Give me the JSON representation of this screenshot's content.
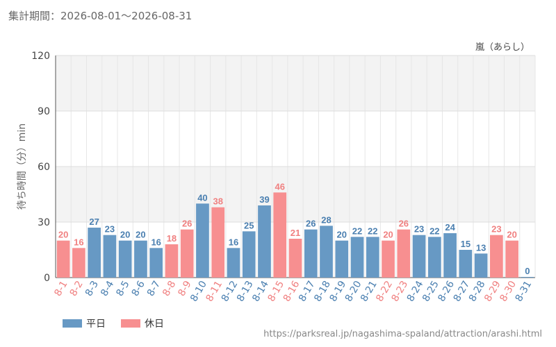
{
  "header": {
    "period": "集計期間：2026-08-01～2026-08-31"
  },
  "chart_data": {
    "type": "bar",
    "title": "",
    "attraction_label": "嵐（あらし）",
    "ylabel": "待ち時間（分）min",
    "xlabel": "",
    "ylim": [
      0,
      120
    ],
    "yticks": [
      0,
      30,
      60,
      90,
      120
    ],
    "grid": true,
    "categories": [
      "8-1",
      "8-2",
      "8-3",
      "8-4",
      "8-5",
      "8-6",
      "8-7",
      "8-8",
      "8-9",
      "8-10",
      "8-11",
      "8-12",
      "8-13",
      "8-14",
      "8-15",
      "8-16",
      "8-17",
      "8-18",
      "8-19",
      "8-20",
      "8-21",
      "8-22",
      "8-23",
      "8-24",
      "8-25",
      "8-26",
      "8-27",
      "8-28",
      "8-29",
      "8-30",
      "8-31"
    ],
    "values": [
      20,
      16,
      27,
      23,
      20,
      20,
      16,
      18,
      26,
      40,
      38,
      16,
      25,
      39,
      46,
      21,
      26,
      28,
      20,
      22,
      22,
      20,
      26,
      23,
      22,
      24,
      15,
      13,
      23,
      20,
      0
    ],
    "day_type": [
      "holiday",
      "holiday",
      "weekday",
      "weekday",
      "weekday",
      "weekday",
      "weekday",
      "holiday",
      "holiday",
      "weekday",
      "holiday",
      "weekday",
      "weekday",
      "weekday",
      "holiday",
      "holiday",
      "weekday",
      "weekday",
      "weekday",
      "weekday",
      "weekday",
      "holiday",
      "holiday",
      "weekday",
      "weekday",
      "weekday",
      "weekday",
      "weekday",
      "holiday",
      "holiday",
      "weekday"
    ],
    "series": [
      {
        "name": "平日",
        "color": "#6799c4"
      },
      {
        "name": "休日",
        "color": "#f78f90"
      }
    ],
    "legend_position": "bottom-left",
    "label_colors": {
      "weekday": "#4a7fb0",
      "holiday": "#f08080"
    }
  },
  "footer": {
    "source": "https://parksreal.jp/nagashima-spaland/attraction/arashi.html"
  }
}
